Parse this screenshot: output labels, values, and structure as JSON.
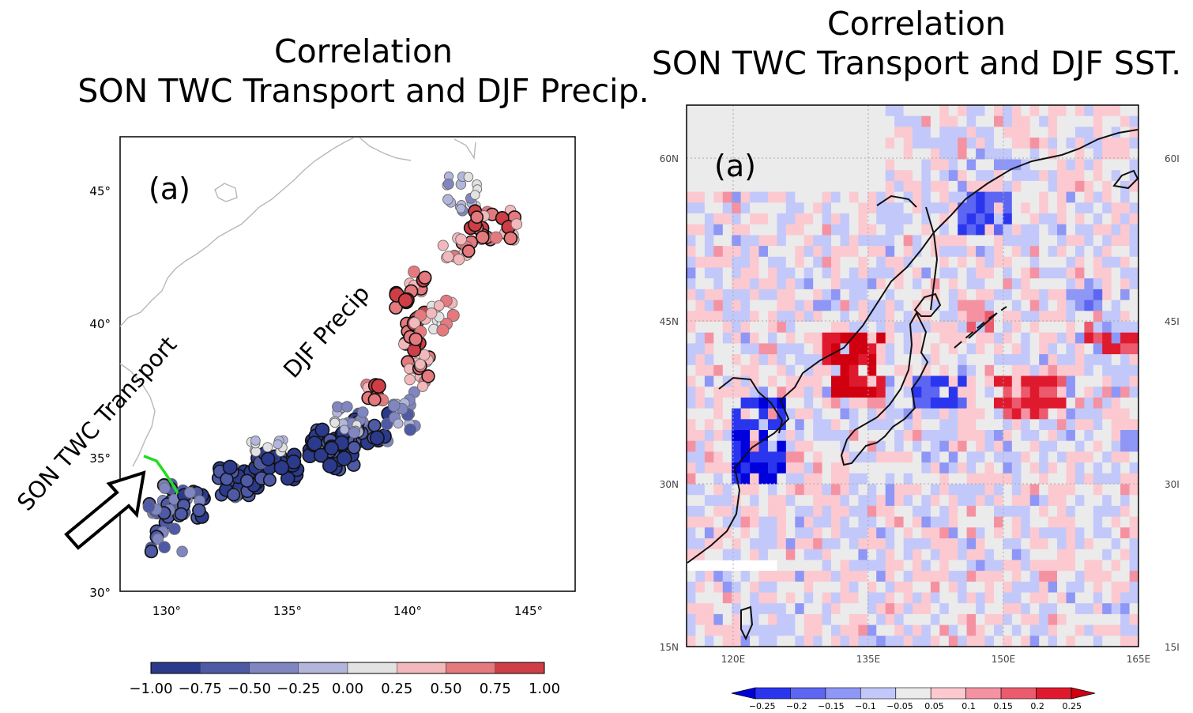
{
  "left_panel": {
    "title_line1": "Correlation",
    "title_line2": "SON TWC Transport and DJF Precip.",
    "panel_label": "(a)",
    "annotation_transport": "SON TWC Transport",
    "annotation_precip": "DJF Precip",
    "lat_ticks": [
      "45°",
      "40°",
      "35°",
      "30°"
    ],
    "lon_ticks": [
      "130°",
      "135°",
      "140°",
      "145°"
    ],
    "colorbar_ticks": [
      "−1.00",
      "−0.75",
      "−0.50",
      "−0.25",
      "0.00",
      "0.25",
      "0.50",
      "0.75",
      "1.00"
    ],
    "colorbar_colors": [
      "#2c3a8c",
      "#4e5aa6",
      "#7f86c2",
      "#b2b6db",
      "#e2e2e2",
      "#f2b8bb",
      "#e4797e",
      "#cf3e46"
    ],
    "transport_line_color": "#22dd22"
  },
  "right_panel": {
    "title_line1": "Correlation",
    "title_line2": "SON TWC Transport and DJF SST.",
    "panel_label": "(a)",
    "lat_ticks": [
      "60N",
      "45N",
      "30N",
      "15N"
    ],
    "lon_ticks": [
      "120E",
      "135E",
      "150E",
      "165E"
    ],
    "right_edge_ticks": [
      "60I",
      "45I",
      "30I",
      "15I"
    ],
    "colorbar_ticks": [
      "−0.25",
      "−0.2",
      "−0.15",
      "−0.1",
      "−0.05",
      "0.05",
      "0.1",
      "0.15",
      "0.2",
      "0.25"
    ],
    "colorbar_colors": [
      "#0000dd",
      "#2a36ee",
      "#5c66f2",
      "#8e96f6",
      "#c2c8fa",
      "#ebebeb",
      "#fbc9cf",
      "#f592a2",
      "#ec5a6e",
      "#e01a2e",
      "#d00010"
    ]
  }
}
